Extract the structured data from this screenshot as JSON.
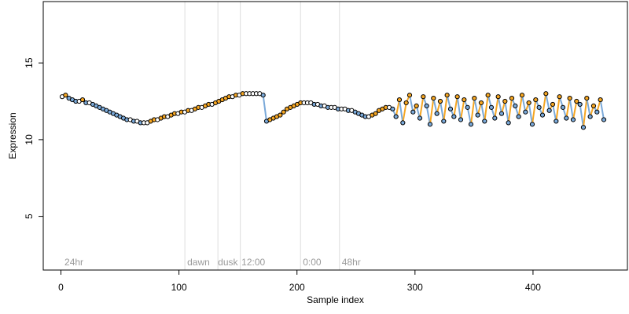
{
  "chart_data": {
    "type": "scatter",
    "title": "",
    "xlabel": "Sample index",
    "ylabel": "Expression",
    "xlim": [
      -15,
      480
    ],
    "ylim": [
      1.5,
      19
    ],
    "xticks": [
      0,
      100,
      200,
      300,
      400
    ],
    "yticks": [
      5,
      10,
      15
    ],
    "grid": false,
    "vlines": [
      105,
      133,
      152,
      203,
      236
    ],
    "annotations": [
      {
        "x": 3,
        "label": "24hr"
      },
      {
        "x": 107,
        "label": "dawn"
      },
      {
        "x": 133,
        "label": "dusk"
      },
      {
        "x": 153,
        "label": "12:00"
      },
      {
        "x": 205,
        "label": "0:00"
      },
      {
        "x": 238,
        "label": "48hr"
      }
    ],
    "colors": {
      "points": "#000000",
      "fill_orange": "#f5a623",
      "fill_blue": "#7aa9d9",
      "fill_white": "#ffffff",
      "segment_orange": "#f5a623",
      "segment_blue": "#7aa9d9",
      "segment_gray": "#999999",
      "vline": "#dddddd",
      "annotation": "#9a9a9a"
    },
    "series": [
      {
        "values": [
          12.8,
          12.9,
          12.7,
          12.6,
          12.5,
          12.5,
          12.6,
          12.4,
          12.4,
          12.3,
          12.2,
          12.1,
          12.0,
          11.9,
          11.8,
          11.7,
          11.6,
          11.5,
          11.4,
          11.3,
          11.3,
          11.2,
          11.2,
          11.1,
          11.1,
          11.1,
          11.2,
          11.3,
          11.3,
          11.4,
          11.5,
          11.5,
          11.6,
          11.7,
          11.7,
          11.8,
          11.8,
          11.9,
          11.9,
          12.0,
          12.1,
          12.1,
          12.2,
          12.3,
          12.3,
          12.4,
          12.5,
          12.6,
          12.7,
          12.8,
          12.8,
          12.9,
          12.9,
          13.0,
          13.0,
          13.0,
          13.0,
          13.0,
          13.0,
          12.9,
          11.2,
          11.3,
          11.4,
          11.5,
          11.6,
          11.8,
          12.0,
          12.1,
          12.2,
          12.3,
          12.4,
          12.4,
          12.4,
          12.4,
          12.3,
          12.3,
          12.2,
          12.2,
          12.1,
          12.1,
          12.1,
          12.0,
          12.0,
          12.0,
          11.9,
          11.9,
          11.8,
          11.7,
          11.6,
          11.5,
          11.5,
          11.6,
          11.7,
          11.9,
          12.0,
          12.1,
          12.1,
          12.0,
          11.5,
          12.6,
          11.1,
          12.4,
          12.9,
          11.8,
          12.2,
          11.4,
          12.8,
          12.2,
          11.0,
          12.7,
          11.7,
          12.5,
          11.2,
          12.9,
          12.0,
          11.5,
          12.8,
          11.3,
          12.6,
          12.1,
          11.0,
          12.7,
          11.6,
          12.4,
          11.2,
          12.9,
          12.1,
          11.4,
          12.8,
          11.7,
          12.5,
          11.1,
          12.7,
          12.2,
          11.5,
          12.9,
          11.8,
          12.4,
          11.0,
          12.6,
          12.1,
          11.6,
          13.0,
          11.9,
          12.3,
          11.2,
          12.8,
          12.1,
          11.4,
          12.7,
          11.3,
          12.5,
          12.3,
          10.8,
          12.7,
          11.5,
          12.2,
          11.8,
          12.6,
          11.3
        ]
      }
    ]
  }
}
